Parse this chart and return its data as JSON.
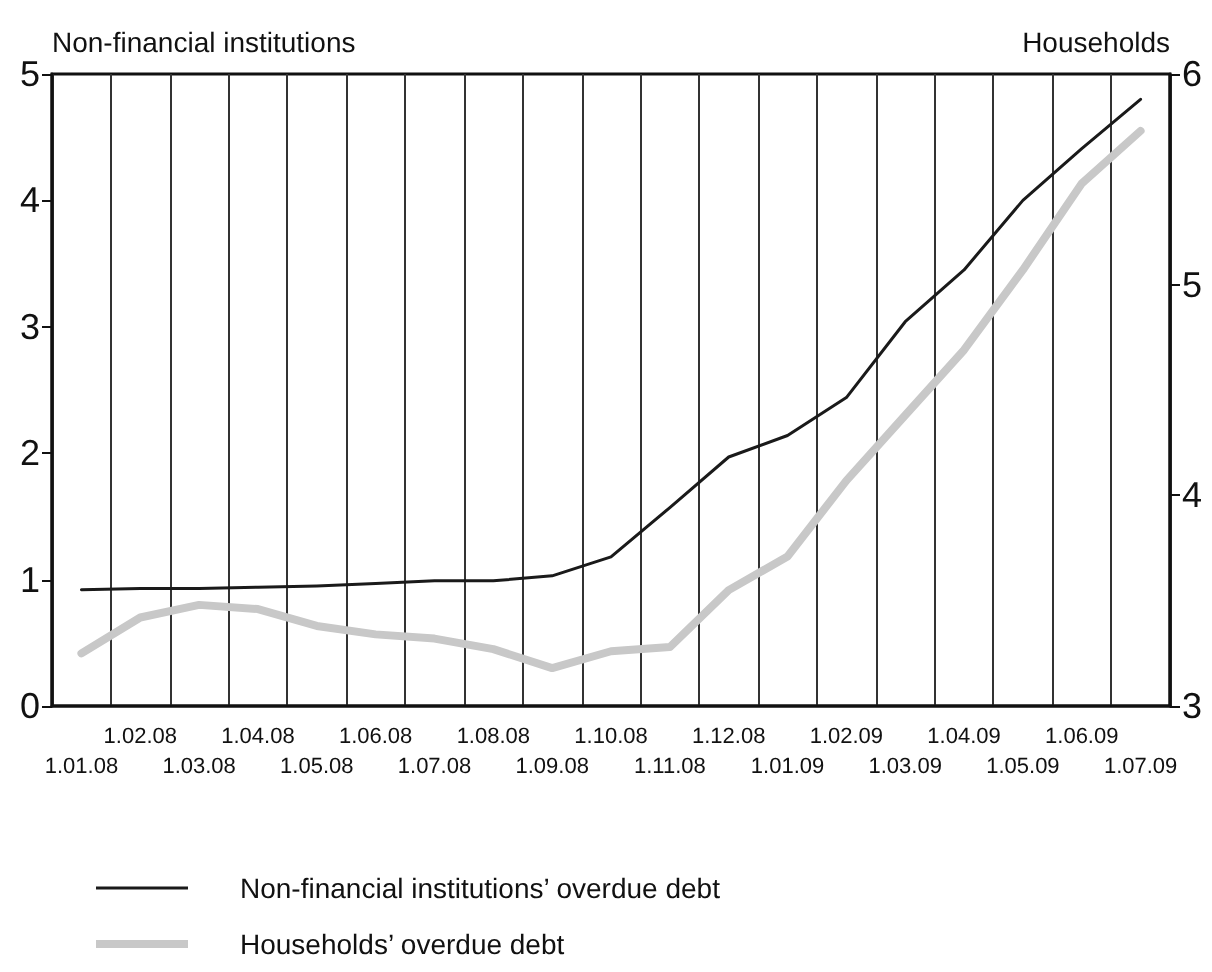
{
  "chart_data": {
    "type": "line",
    "ylabel": "Non-financial institutions",
    "y2label": "Households",
    "categories": [
      "1.01.08",
      "1.02.08",
      "1.03.08",
      "1.04.08",
      "1.05.08",
      "1.06.08",
      "1.07.08",
      "1.08.08",
      "1.09.08",
      "1.10.08",
      "1.11.08",
      "1.12.08",
      "1.01.09",
      "1.02.09",
      "1.03.09",
      "1.04.09",
      "1.05.09",
      "1.06.09",
      "1.07.09"
    ],
    "series": [
      {
        "name": "Non-financial institutions’ overdue debt",
        "color": "#1a1a1a",
        "values": [
          0.92,
          0.93,
          0.93,
          0.94,
          0.95,
          0.97,
          0.99,
          0.99,
          1.03,
          1.18,
          1.57,
          1.97,
          2.14,
          2.44,
          3.04,
          3.45,
          4.0,
          4.41,
          4.8
        ]
      },
      {
        "name": "Households’ overdue debt",
        "color": "#c8c8c8",
        "axis": "y2",
        "values": [
          3.25,
          3.42,
          3.48,
          3.46,
          3.38,
          3.34,
          3.32,
          3.27,
          3.18,
          3.26,
          3.28,
          3.55,
          3.71,
          4.07,
          4.38,
          4.69,
          5.07,
          5.48,
          5.73
        ]
      }
    ],
    "ylim": [
      0,
      5
    ],
    "yticks": [
      0,
      1,
      2,
      3,
      4,
      5
    ],
    "y2lim": [
      3,
      6
    ],
    "y2ticks": [
      3,
      4,
      5,
      6
    ],
    "grid": "x",
    "legend": "bottom",
    "marker": "none",
    "line_style": "solid"
  }
}
